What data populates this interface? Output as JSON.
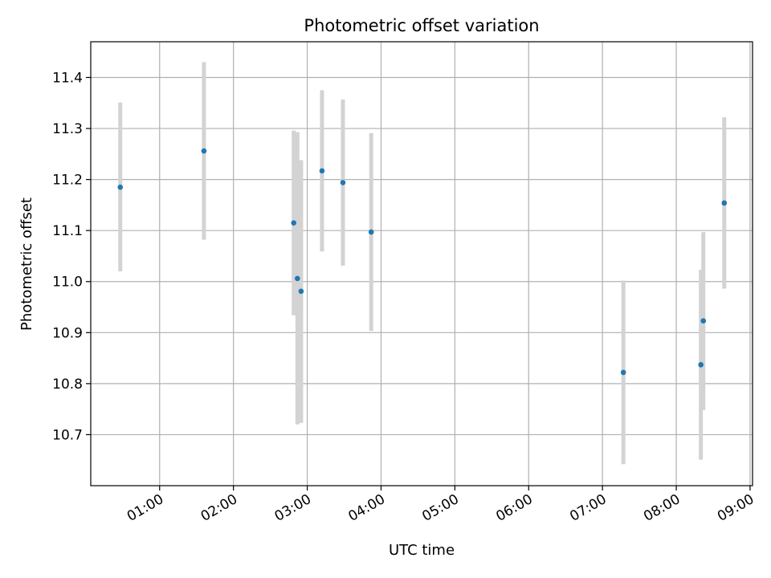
{
  "colors": {
    "point": "#1f77b4",
    "errorbar": "#d3d3d3",
    "grid": "#b0b0b0",
    "axis": "#000000"
  },
  "chart_data": {
    "type": "scatter",
    "title": "Photometric offset variation",
    "xlabel": "UTC time",
    "ylabel": "Photometric offset",
    "grid": true,
    "x_unit": "time (hours, UTC)",
    "xlim": [
      "00:04",
      "09:02"
    ],
    "ylim": [
      10.6,
      11.47
    ],
    "x_ticks": [
      "01:00",
      "02:00",
      "03:00",
      "04:00",
      "05:00",
      "06:00",
      "07:00",
      "08:00",
      "09:00"
    ],
    "y_ticks": [
      "10.7",
      "10.8",
      "10.9",
      "11.0",
      "11.1",
      "11.2",
      "11.3",
      "11.4"
    ],
    "points": [
      {
        "x": "00:28",
        "y": 11.185,
        "err_low": 11.02,
        "err_high": 11.351
      },
      {
        "x": "01:36",
        "y": 11.256,
        "err_low": 11.082,
        "err_high": 11.43
      },
      {
        "x": "02:49",
        "y": 11.115,
        "err_low": 10.934,
        "err_high": 11.296
      },
      {
        "x": "02:52",
        "y": 11.006,
        "err_low": 10.72,
        "err_high": 11.293
      },
      {
        "x": "02:55",
        "y": 10.981,
        "err_low": 10.723,
        "err_high": 11.238
      },
      {
        "x": "03:12",
        "y": 11.217,
        "err_low": 11.059,
        "err_high": 11.375
      },
      {
        "x": "03:29",
        "y": 11.194,
        "err_low": 11.031,
        "err_high": 11.357
      },
      {
        "x": "03:52",
        "y": 11.097,
        "err_low": 10.903,
        "err_high": 11.291
      },
      {
        "x": "07:17",
        "y": 10.822,
        "err_low": 10.642,
        "err_high": 11.002
      },
      {
        "x": "08:20",
        "y": 10.837,
        "err_low": 10.651,
        "err_high": 11.023
      },
      {
        "x": "08:22",
        "y": 10.923,
        "err_low": 10.748,
        "err_high": 11.097
      },
      {
        "x": "08:39",
        "y": 11.154,
        "err_low": 10.986,
        "err_high": 11.322
      }
    ]
  }
}
